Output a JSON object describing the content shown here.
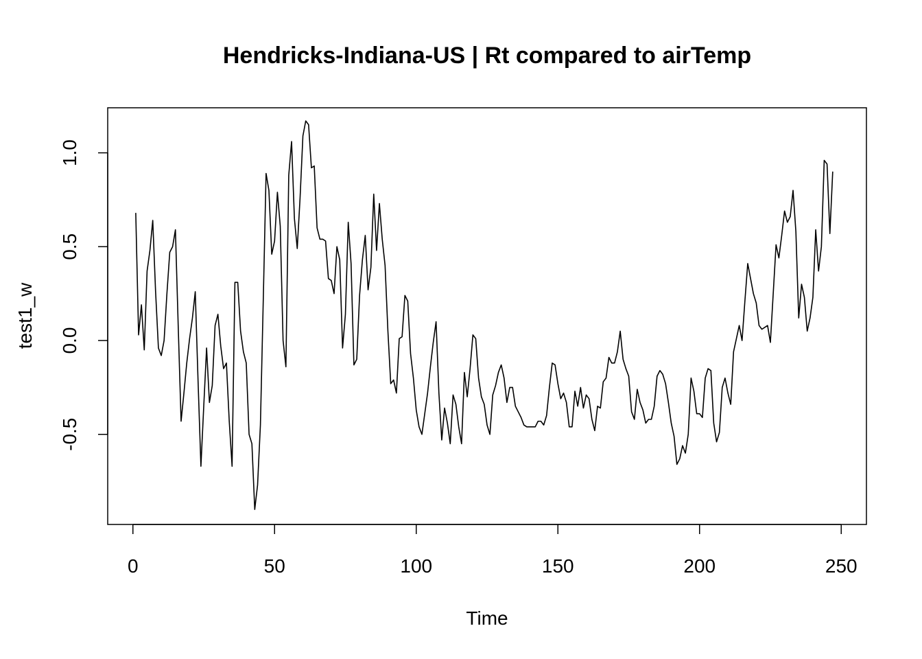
{
  "chart_data": {
    "type": "line",
    "title": "Hendricks-Indiana-US | Rt compared to airTemp",
    "xlabel": "Time",
    "ylabel": "test1_w",
    "xlim": [
      -8.9,
      258.9
    ],
    "ylim": [
      -0.98,
      1.24
    ],
    "x_ticks": [
      0,
      50,
      100,
      150,
      200,
      250
    ],
    "y_ticks": [
      -0.5,
      0.0,
      0.5,
      1.0
    ],
    "x_tick_labels": [
      "0",
      "50",
      "100",
      "150",
      "200",
      "250"
    ],
    "y_tick_labels": [
      "-0.5",
      "0.0",
      "0.5",
      "1.0"
    ],
    "grid": false,
    "series": [
      {
        "color": "#000000",
        "x_start": 1,
        "values": [
          0.68,
          0.03,
          0.19,
          -0.05,
          0.37,
          0.48,
          0.64,
          0.26,
          -0.04,
          -0.08,
          0.0,
          0.25,
          0.47,
          0.5,
          0.59,
          0.07,
          -0.43,
          -0.28,
          -0.12,
          0.01,
          0.12,
          0.26,
          -0.22,
          -0.67,
          -0.35,
          -0.04,
          -0.33,
          -0.24,
          0.08,
          0.14,
          -0.03,
          -0.15,
          -0.12,
          -0.43,
          -0.67,
          0.31,
          0.31,
          0.05,
          -0.06,
          -0.12,
          -0.5,
          -0.55,
          -0.9,
          -0.77,
          -0.45,
          0.21,
          0.89,
          0.8,
          0.46,
          0.53,
          0.79,
          0.61,
          0.0,
          -0.14,
          0.88,
          1.06,
          0.65,
          0.49,
          0.76,
          1.09,
          1.17,
          1.15,
          0.92,
          0.93,
          0.6,
          0.54,
          0.54,
          0.53,
          0.33,
          0.32,
          0.25,
          0.5,
          0.43,
          -0.04,
          0.14,
          0.63,
          0.41,
          -0.13,
          -0.1,
          0.24,
          0.43,
          0.56,
          0.27,
          0.39,
          0.78,
          0.48,
          0.73,
          0.54,
          0.4,
          0.05,
          -0.23,
          -0.21,
          -0.28,
          0.01,
          0.02,
          0.24,
          0.21,
          -0.07,
          -0.2,
          -0.37,
          -0.46,
          -0.5,
          -0.39,
          -0.28,
          -0.14,
          -0.01,
          0.1,
          -0.28,
          -0.53,
          -0.36,
          -0.44,
          -0.55,
          -0.29,
          -0.34,
          -0.46,
          -0.55,
          -0.17,
          -0.3,
          -0.15,
          0.03,
          0.01,
          -0.2,
          -0.3,
          -0.34,
          -0.45,
          -0.5,
          -0.29,
          -0.24,
          -0.17,
          -0.13,
          -0.2,
          -0.33,
          -0.25,
          -0.25,
          -0.35,
          -0.38,
          -0.41,
          -0.45,
          -0.46,
          -0.46,
          -0.46,
          -0.46,
          -0.43,
          -0.43,
          -0.45,
          -0.4,
          -0.25,
          -0.12,
          -0.13,
          -0.23,
          -0.31,
          -0.28,
          -0.33,
          -0.46,
          -0.46,
          -0.27,
          -0.35,
          -0.25,
          -0.36,
          -0.29,
          -0.31,
          -0.42,
          -0.48,
          -0.35,
          -0.36,
          -0.22,
          -0.2,
          -0.09,
          -0.12,
          -0.12,
          -0.06,
          0.05,
          -0.1,
          -0.15,
          -0.19,
          -0.38,
          -0.42,
          -0.26,
          -0.33,
          -0.37,
          -0.44,
          -0.42,
          -0.42,
          -0.35,
          -0.19,
          -0.16,
          -0.18,
          -0.23,
          -0.33,
          -0.44,
          -0.51,
          -0.66,
          -0.63,
          -0.56,
          -0.6,
          -0.5,
          -0.2,
          -0.27,
          -0.39,
          -0.39,
          -0.41,
          -0.2,
          -0.15,
          -0.16,
          -0.44,
          -0.54,
          -0.49,
          -0.25,
          -0.2,
          -0.28,
          -0.34,
          -0.06,
          0.01,
          0.08,
          0.0,
          0.21,
          0.41,
          0.33,
          0.25,
          0.2,
          0.08,
          0.06,
          0.07,
          0.08,
          -0.01,
          0.25,
          0.51,
          0.44,
          0.56,
          0.69,
          0.63,
          0.66,
          0.8,
          0.58,
          0.12,
          0.3,
          0.23,
          0.05,
          0.12,
          0.23,
          0.59,
          0.37,
          0.5,
          0.96,
          0.94,
          0.57,
          0.9
        ]
      }
    ]
  }
}
